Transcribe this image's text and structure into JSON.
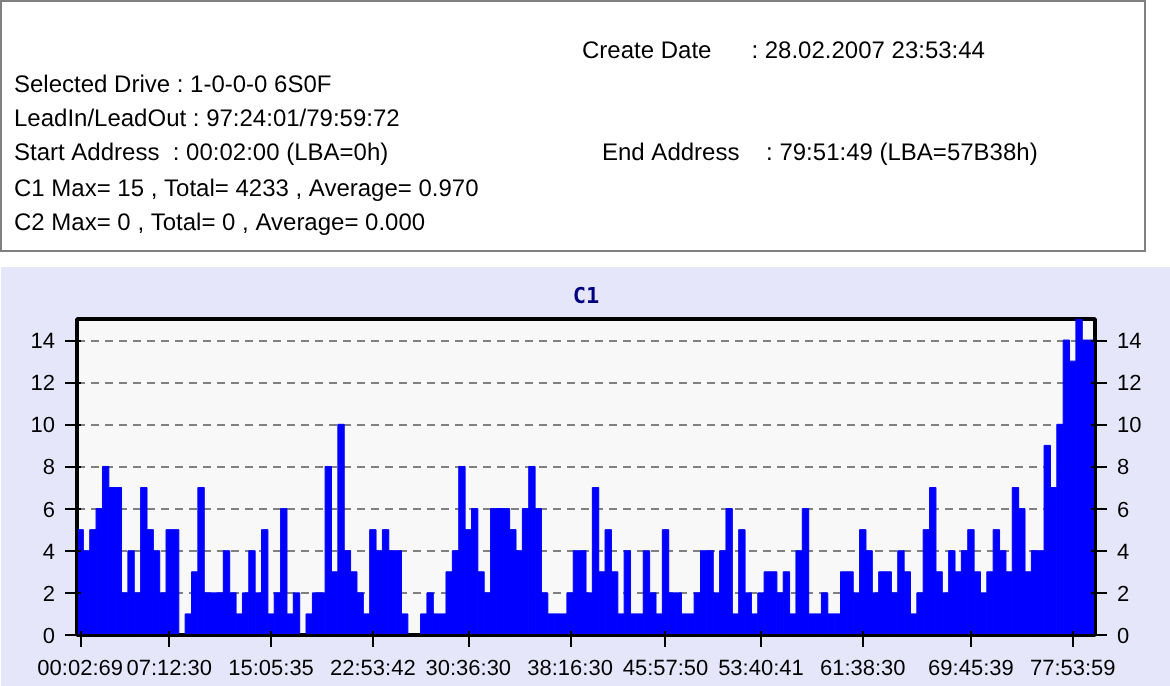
{
  "chart_data": {
    "type": "bar",
    "title": "C1",
    "annotations": [
      "Create Date      : 28.02.2007 23:53:44",
      "Selected Drive : 1-0-0-0 6S0F",
      "LeadIn/LeadOut : 97:24:01/79:59:72",
      "Start Address  : 00:02:00 (LBA=0h)",
      "End Address    : 79:51:49 (LBA=57B38h)",
      "C1 Max= 15 , Total= 4233 , Average= 0.970",
      "C2 Max= 0 , Total= 0 , Average= 0.000"
    ],
    "categories": [
      "00:02:69",
      null,
      null,
      null,
      null,
      null,
      null,
      null,
      null,
      null,
      null,
      null,
      null,
      null,
      "07:12:30",
      null,
      null,
      null,
      null,
      null,
      null,
      null,
      null,
      null,
      null,
      null,
      null,
      null,
      null,
      null,
      "15:05:35",
      null,
      null,
      null,
      null,
      null,
      null,
      null,
      null,
      null,
      null,
      null,
      null,
      null,
      null,
      null,
      "22:53:42",
      null,
      null,
      null,
      null,
      null,
      null,
      null,
      null,
      null,
      null,
      null,
      null,
      null,
      null,
      "30:36:30",
      null,
      null,
      null,
      null,
      null,
      null,
      null,
      null,
      null,
      null,
      null,
      null,
      null,
      null,
      null,
      "38:16:30",
      null,
      null,
      null,
      null,
      null,
      null,
      null,
      null,
      null,
      null,
      null,
      null,
      null,
      null,
      "45:57:50",
      null,
      null,
      null,
      null,
      null,
      null,
      null,
      null,
      null,
      null,
      null,
      null,
      null,
      null,
      "53:40:41",
      null,
      null,
      null,
      null,
      null,
      null,
      null,
      null,
      null,
      null,
      null,
      null,
      null,
      null,
      null,
      "61:38:30",
      null,
      null,
      null,
      null,
      null,
      null,
      null,
      null,
      null,
      null,
      null,
      null,
      null,
      null,
      null,
      null,
      "69:45:39",
      null,
      null,
      null,
      null,
      null,
      null,
      null,
      null,
      null,
      null,
      null,
      null,
      null,
      null,
      null,
      "77:53:59",
      null,
      null,
      null
    ],
    "values": [
      5,
      4,
      5,
      6,
      8,
      7,
      7,
      2,
      4,
      2,
      7,
      5,
      4,
      2,
      5,
      5,
      0,
      1,
      3,
      7,
      2,
      2,
      2,
      4,
      2,
      1,
      2,
      4,
      2,
      5,
      1,
      2,
      6,
      1,
      2,
      0,
      1,
      2,
      2,
      8,
      3,
      10,
      4,
      3,
      2,
      1,
      5,
      4,
      5,
      4,
      4,
      1,
      0,
      0,
      1,
      2,
      1,
      1,
      3,
      4,
      8,
      5,
      6,
      3,
      2,
      6,
      6,
      6,
      5,
      4,
      6,
      8,
      6,
      2,
      1,
      1,
      1,
      2,
      4,
      4,
      2,
      7,
      3,
      5,
      3,
      1,
      4,
      1,
      1,
      4,
      2,
      1,
      5,
      2,
      2,
      1,
      1,
      2,
      4,
      4,
      2,
      4,
      6,
      1,
      5,
      2,
      1,
      2,
      3,
      3,
      2,
      3,
      1,
      4,
      6,
      1,
      1,
      2,
      1,
      1,
      3,
      3,
      2,
      5,
      4,
      2,
      3,
      3,
      2,
      4,
      3,
      1,
      2,
      5,
      7,
      3,
      2,
      4,
      3,
      4,
      5,
      3,
      2,
      3,
      5,
      4,
      3,
      7,
      6,
      3,
      4,
      4,
      9,
      7,
      10,
      14,
      13,
      15,
      14,
      14
    ],
    "color": "#0000ff",
    "ylim": [
      0,
      15
    ],
    "yticks": [
      0,
      2,
      4,
      6,
      8,
      10,
      12,
      14
    ],
    "y2lim": [
      0,
      15
    ],
    "y2ticks": [
      0,
      2,
      4,
      6,
      8,
      10,
      12,
      14
    ],
    "grid": "y"
  }
}
